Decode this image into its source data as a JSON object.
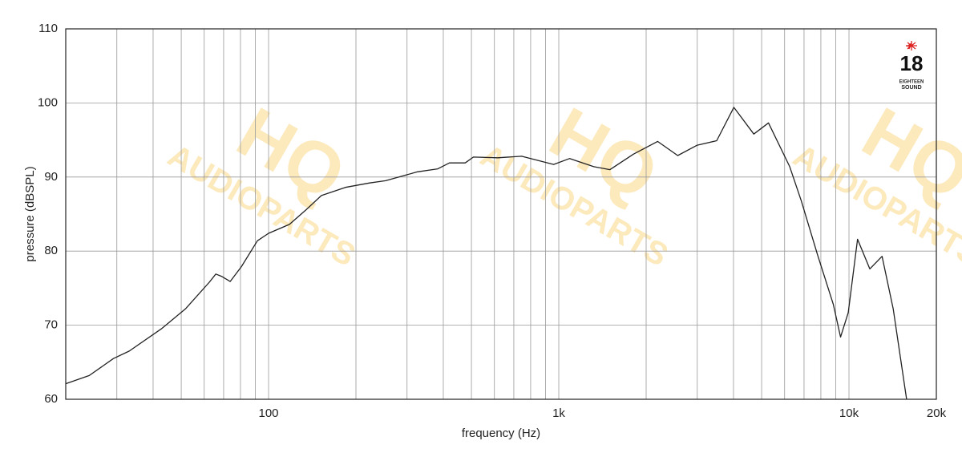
{
  "chart_data": {
    "type": "line",
    "x_label": "frequency (Hz)",
    "y_label": "pressure (dBSPL)",
    "log_x": true,
    "grid": true,
    "xlim": [
      20,
      20000
    ],
    "ylim": [
      60,
      110
    ],
    "xticks": [
      100,
      {
        "value": 1000,
        "label": "1k"
      },
      {
        "value": 10000,
        "label": "10k"
      },
      {
        "value": 20000,
        "label": "20k"
      }
    ],
    "xminor_ticks": [
      30,
      40,
      50,
      60,
      70,
      80,
      90,
      200,
      300,
      400,
      500,
      600,
      700,
      800,
      900,
      2000,
      3000,
      4000,
      5000,
      6000,
      7000,
      8000,
      9000
    ],
    "yticks": [
      60,
      70,
      80,
      90,
      100,
      110
    ],
    "logo": {
      "number": "18",
      "line1": "EIGHTEEN",
      "line2": "SOUND"
    },
    "watermark": {
      "line1": "HQ",
      "line2": "AUDIOPARTS"
    },
    "x": [
      20,
      24.1,
      29.2,
      33.1,
      42.7,
      51.7,
      62.5,
      65.8,
      68.8,
      73.7,
      80.6,
      91.5,
      100,
      118,
      134,
      152,
      184,
      223,
      253,
      287,
      326,
      383,
      420,
      476,
      508,
      616,
      745,
      960,
      1090,
      1320,
      1500,
      1810,
      2190,
      2570,
      3000,
      3500,
      4010,
      4700,
      5280,
      6250,
      6850,
      7790,
      8830,
      9350,
      9940,
      10700,
      11800,
      13000,
      14200,
      15800
    ],
    "series": [
      {
        "name": "pressure",
        "color": "#222222",
        "values": [
          62.1,
          63.2,
          65.5,
          66.5,
          69.5,
          72.2,
          75.8,
          76.9,
          76.6,
          75.9,
          77.9,
          81.4,
          82.4,
          83.6,
          85.5,
          87.5,
          88.6,
          89.2,
          89.5,
          90.1,
          90.7,
          91.1,
          91.9,
          91.9,
          92.7,
          92.6,
          92.8,
          91.7,
          92.5,
          91.4,
          91.0,
          93.1,
          94.8,
          92.9,
          94.3,
          94.9,
          99.4,
          95.8,
          97.3,
          91.4,
          86.8,
          79.5,
          72.8,
          68.4,
          71.7,
          81.6,
          77.6,
          79.3,
          72.2,
          60
        ]
      }
    ]
  }
}
